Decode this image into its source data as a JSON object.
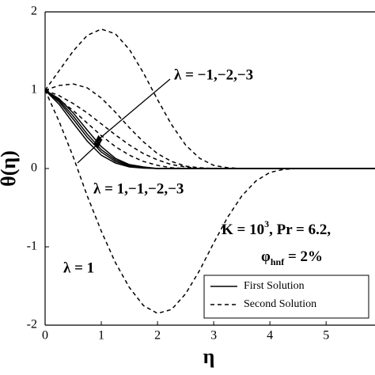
{
  "chart_data": {
    "type": "line",
    "xlabel": "η",
    "ylabel": "θ(η)",
    "x": [
      0,
      0.25,
      0.5,
      0.75,
      1,
      1.25,
      1.5,
      1.75,
      2,
      2.25,
      2.5,
      2.75,
      3,
      3.25,
      3.5,
      3.75,
      4,
      4.25,
      4.5,
      4.75,
      5,
      5.25,
      5.5,
      5.75,
      5.87
    ],
    "xlim": [
      0,
      5.87
    ],
    "xticks": [
      0,
      1,
      2,
      3,
      4,
      5
    ],
    "ylim": [
      -2,
      2
    ],
    "yticks": [
      -2,
      -1,
      0,
      1,
      2
    ],
    "color": "#000000",
    "series": [
      {
        "name": "First Solution",
        "dashed": false,
        "curves": [
          [
            1,
            0.82,
            0.58,
            0.35,
            0.17,
            0.07,
            0.02,
            0.005,
            0,
            0,
            0,
            0,
            0,
            0,
            0,
            0,
            0,
            0,
            0,
            0,
            0,
            0,
            0,
            0,
            0
          ],
          [
            1,
            0.85,
            0.63,
            0.4,
            0.21,
            0.09,
            0.03,
            0.01,
            0,
            0,
            0,
            0,
            0,
            0,
            0,
            0,
            0,
            0,
            0,
            0,
            0,
            0,
            0,
            0,
            0
          ],
          [
            1,
            0.87,
            0.67,
            0.44,
            0.24,
            0.11,
            0.04,
            0.01,
            0,
            0,
            0,
            0,
            0,
            0,
            0,
            0,
            0,
            0,
            0,
            0,
            0,
            0,
            0,
            0,
            0
          ],
          [
            1,
            0.89,
            0.71,
            0.49,
            0.28,
            0.13,
            0.05,
            0.02,
            0,
            0,
            0,
            0,
            0,
            0,
            0,
            0,
            0,
            0,
            0,
            0,
            0,
            0,
            0,
            0,
            0
          ]
        ]
      },
      {
        "name": "Second Solution",
        "dashed": true,
        "curves": [
          [
            1,
            1.25,
            1.5,
            1.7,
            1.78,
            1.72,
            1.52,
            1.22,
            0.88,
            0.56,
            0.3,
            0.13,
            0.04,
            0.01,
            0,
            0,
            0,
            0,
            0,
            0,
            0,
            0,
            0,
            0,
            0
          ],
          [
            1,
            1.06,
            1.08,
            1.03,
            0.9,
            0.72,
            0.52,
            0.34,
            0.19,
            0.09,
            0.03,
            0.01,
            0,
            0,
            0,
            0,
            0,
            0,
            0,
            0,
            0,
            0,
            0,
            0,
            0
          ],
          [
            1,
            0.93,
            0.83,
            0.71,
            0.57,
            0.43,
            0.3,
            0.19,
            0.11,
            0.05,
            0.02,
            0,
            0,
            0,
            0,
            0,
            0,
            0,
            0,
            0,
            0,
            0,
            0,
            0,
            0
          ],
          [
            1,
            0.88,
            0.74,
            0.58,
            0.42,
            0.28,
            0.17,
            0.09,
            0.04,
            0.01,
            0,
            0,
            0,
            0,
            0,
            0,
            0,
            0,
            0,
            0,
            0,
            0,
            0,
            0,
            0
          ],
          [
            1,
            0.6,
            0.15,
            -0.35,
            -0.8,
            -1.2,
            -1.52,
            -1.75,
            -1.85,
            -1.8,
            -1.6,
            -1.3,
            -0.95,
            -0.62,
            -0.35,
            -0.16,
            -0.05,
            -0.01,
            0,
            0,
            0,
            0,
            0,
            0,
            0
          ]
        ]
      }
    ],
    "annotations": [
      {
        "text": "λ = −1,−2,−3"
      },
      {
        "text": "λ = 1,−1,−2,−3"
      },
      {
        "text": "K = 10",
        "sup": "3",
        "rest": ", Pr = 6.2,"
      },
      {
        "text": "φ",
        "sub": "hnf",
        "rest": " = 2%"
      },
      {
        "text": "λ = 1"
      }
    ]
  }
}
